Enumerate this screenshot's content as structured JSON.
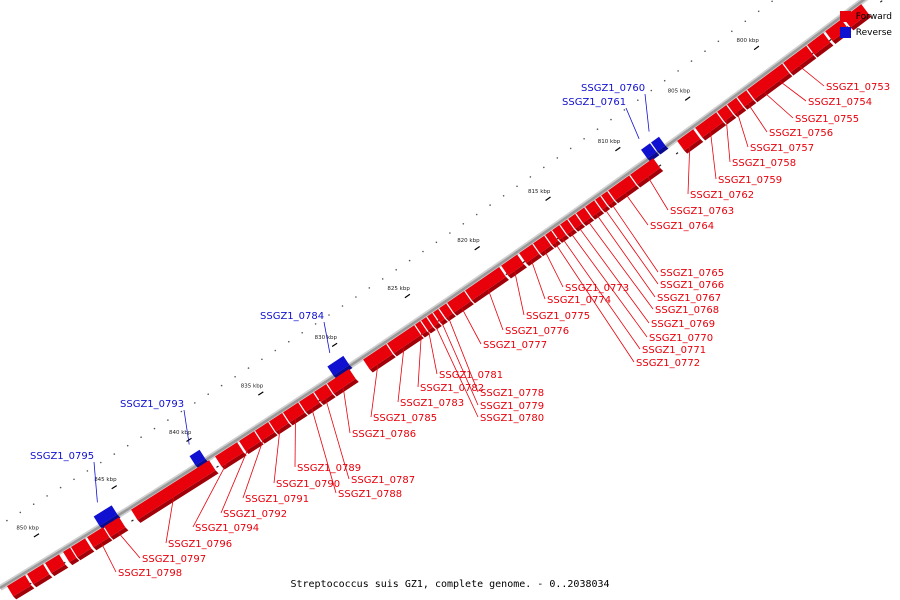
{
  "caption": "Streptococcus suis GZ1, complete genome. - 0..2038034",
  "legend": [
    {
      "label": "Forward",
      "color": "#e8000b"
    },
    {
      "label": "Reverse",
      "color": "#1010d0"
    }
  ],
  "colors": {
    "forward": "#e8000b",
    "reverse": "#1010d0",
    "backbone": "#9a9a9a"
  },
  "scale": {
    "unit": "kbp",
    "labels": [
      "800 kbp",
      "805 kbp",
      "810 kbp",
      "815 kbp",
      "820 kbp",
      "825 kbp",
      "830 kbp",
      "835 kbp",
      "840 kbp",
      "845 kbp",
      "850 kbp"
    ]
  },
  "genes": [
    {
      "id": "SSGZ1_0753",
      "strand": "forward"
    },
    {
      "id": "SSGZ1_0754",
      "strand": "forward"
    },
    {
      "id": "SSGZ1_0755",
      "strand": "forward"
    },
    {
      "id": "SSGZ1_0756",
      "strand": "forward"
    },
    {
      "id": "SSGZ1_0757",
      "strand": "forward"
    },
    {
      "id": "SSGZ1_0758",
      "strand": "forward"
    },
    {
      "id": "SSGZ1_0759",
      "strand": "forward"
    },
    {
      "id": "SSGZ1_0760",
      "strand": "reverse"
    },
    {
      "id": "SSGZ1_0761",
      "strand": "reverse"
    },
    {
      "id": "SSGZ1_0762",
      "strand": "forward"
    },
    {
      "id": "SSGZ1_0763",
      "strand": "forward"
    },
    {
      "id": "SSGZ1_0764",
      "strand": "forward"
    },
    {
      "id": "SSGZ1_0765",
      "strand": "forward"
    },
    {
      "id": "SSGZ1_0766",
      "strand": "forward"
    },
    {
      "id": "SSGZ1_0767",
      "strand": "forward"
    },
    {
      "id": "SSGZ1_0768",
      "strand": "forward"
    },
    {
      "id": "SSGZ1_0769",
      "strand": "forward"
    },
    {
      "id": "SSGZ1_0770",
      "strand": "forward"
    },
    {
      "id": "SSGZ1_0771",
      "strand": "forward"
    },
    {
      "id": "SSGZ1_0772",
      "strand": "forward"
    },
    {
      "id": "SSGZ1_0773",
      "strand": "forward"
    },
    {
      "id": "SSGZ1_0774",
      "strand": "forward"
    },
    {
      "id": "SSGZ1_0775",
      "strand": "forward"
    },
    {
      "id": "SSGZ1_0776",
      "strand": "forward"
    },
    {
      "id": "SSGZ1_0777",
      "strand": "forward"
    },
    {
      "id": "SSGZ1_0778",
      "strand": "forward"
    },
    {
      "id": "SSGZ1_0779",
      "strand": "forward"
    },
    {
      "id": "SSGZ1_0780",
      "strand": "forward"
    },
    {
      "id": "SSGZ1_0781",
      "strand": "forward"
    },
    {
      "id": "SSGZ1_0782",
      "strand": "forward"
    },
    {
      "id": "SSGZ1_0783",
      "strand": "forward"
    },
    {
      "id": "SSGZ1_0784",
      "strand": "reverse"
    },
    {
      "id": "SSGZ1_0785",
      "strand": "forward"
    },
    {
      "id": "SSGZ1_0786",
      "strand": "forward"
    },
    {
      "id": "SSGZ1_0787",
      "strand": "forward"
    },
    {
      "id": "SSGZ1_0788",
      "strand": "forward"
    },
    {
      "id": "SSGZ1_0789",
      "strand": "forward"
    },
    {
      "id": "SSGZ1_0790",
      "strand": "forward"
    },
    {
      "id": "SSGZ1_0791",
      "strand": "forward"
    },
    {
      "id": "SSGZ1_0792",
      "strand": "forward"
    },
    {
      "id": "SSGZ1_0793",
      "strand": "reverse"
    },
    {
      "id": "SSGZ1_0794",
      "strand": "forward"
    },
    {
      "id": "SSGZ1_0795",
      "strand": "reverse"
    },
    {
      "id": "SSGZ1_0796",
      "strand": "forward"
    },
    {
      "id": "SSGZ1_0797",
      "strand": "forward"
    },
    {
      "id": "SSGZ1_0798",
      "strand": "forward"
    }
  ]
}
